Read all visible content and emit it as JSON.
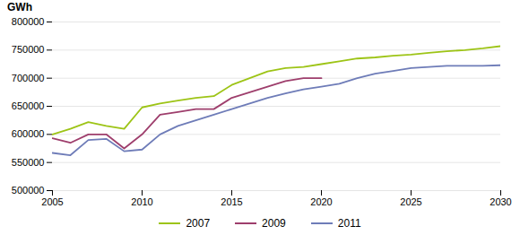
{
  "chart_data": {
    "type": "line",
    "y_label": "GWh",
    "x": [
      2005,
      2006,
      2007,
      2008,
      2009,
      2010,
      2011,
      2012,
      2013,
      2014,
      2015,
      2016,
      2017,
      2018,
      2019,
      2020,
      2021,
      2022,
      2023,
      2024,
      2025,
      2026,
      2027,
      2028,
      2029,
      2030
    ],
    "series": [
      {
        "name": "2007",
        "color": "#9dc416",
        "values": [
          600000,
          610000,
          622000,
          615000,
          610000,
          648000,
          655000,
          660000,
          665000,
          668000,
          688000,
          700000,
          712000,
          718000,
          720000,
          725000,
          730000,
          735000,
          737000,
          740000,
          742000,
          745000,
          748000,
          750000,
          753000,
          757000
        ]
      },
      {
        "name": "2009",
        "color": "#9e3e6c",
        "values": [
          593000,
          585000,
          600000,
          600000,
          575000,
          600000,
          635000,
          640000,
          645000,
          645000,
          665000,
          675000,
          685000,
          695000,
          700000,
          700000,
          null,
          null,
          null,
          null,
          null,
          null,
          null,
          null,
          null,
          null
        ]
      },
      {
        "name": "2011",
        "color": "#6e7cb8",
        "values": [
          567000,
          563000,
          590000,
          592000,
          570000,
          573000,
          600000,
          615000,
          625000,
          635000,
          645000,
          655000,
          665000,
          673000,
          680000,
          685000,
          690000,
          700000,
          708000,
          713000,
          718000,
          720000,
          722000,
          722000,
          722000,
          723000
        ]
      }
    ],
    "xlim": [
      2005,
      2030
    ],
    "ylim": [
      500000,
      800000
    ],
    "xticks": [
      2005,
      2010,
      2015,
      2020,
      2025,
      2030
    ],
    "yticks": [
      500000,
      550000,
      600000,
      650000,
      700000,
      750000,
      800000
    ],
    "grid": true,
    "legend": "bottom"
  }
}
